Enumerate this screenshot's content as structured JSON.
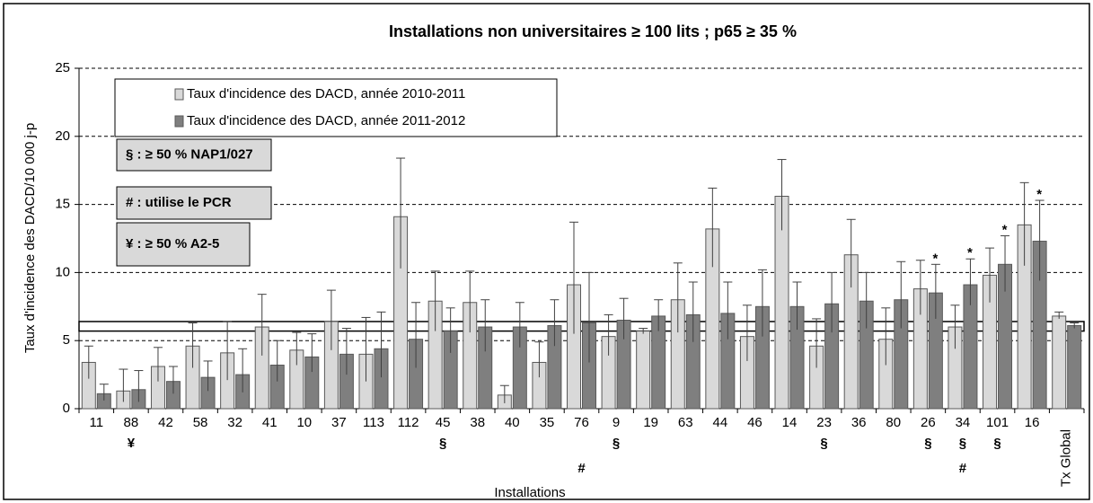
{
  "chart_data": {
    "type": "bar",
    "title": "Installations non universitaires ≥ 100 lits ; p65 ≥ 35 %",
    "y_label": "Taux d'incidence des DACD/10 000 j-p",
    "x_label": "Installations",
    "categories": [
      "11",
      "88",
      "42",
      "58",
      "32",
      "41",
      "10",
      "37",
      "113",
      "112",
      "45",
      "38",
      "40",
      "35",
      "76",
      "9",
      "19",
      "63",
      "44",
      "46",
      "14",
      "23",
      "36",
      "80",
      "26",
      "34",
      "101",
      "16",
      "Tx Global"
    ],
    "series": [
      {
        "name": "Taux d'incidence des DACD, année 2010-2011",
        "color": "#d9d9d9",
        "values": [
          3.4,
          1.3,
          3.1,
          4.6,
          4.1,
          6.0,
          4.3,
          6.4,
          4.0,
          14.1,
          7.9,
          7.8,
          1.0,
          3.4,
          9.1,
          5.3,
          5.7,
          8.0,
          13.2,
          5.3,
          15.6,
          4.6,
          11.3,
          5.1,
          8.8,
          6.0,
          9.8,
          13.5,
          6.8
        ],
        "lower": [
          2.2,
          0.5,
          2.0,
          3.0,
          2.1,
          3.9,
          3.2,
          4.3,
          2.0,
          10.3,
          5.7,
          5.6,
          0.4,
          2.3,
          5.5,
          3.9,
          5.5,
          5.6,
          10.4,
          3.5,
          13.1,
          3.0,
          8.9,
          3.2,
          6.9,
          4.4,
          7.8,
          10.5,
          6.6
        ],
        "upper": [
          4.6,
          2.9,
          4.5,
          6.3,
          6.4,
          8.4,
          5.6,
          8.7,
          6.7,
          18.4,
          10.1,
          10.1,
          1.7,
          4.9,
          13.7,
          6.9,
          5.9,
          10.7,
          16.2,
          7.6,
          18.3,
          6.6,
          13.9,
          7.4,
          10.9,
          7.6,
          11.8,
          16.6,
          7.1
        ]
      },
      {
        "name": "Taux d'incidence des DACD, année 2011-2012",
        "color": "#7f7f7f",
        "values": [
          1.1,
          1.4,
          2.0,
          2.3,
          2.5,
          3.2,
          3.8,
          4.0,
          4.4,
          5.1,
          5.7,
          6.0,
          6.0,
          6.1,
          6.3,
          6.5,
          6.8,
          6.9,
          7.0,
          7.5,
          7.5,
          7.7,
          7.9,
          8.0,
          8.5,
          9.1,
          10.6,
          12.3,
          6.1
        ],
        "lower": [
          0.6,
          0.5,
          1.1,
          1.3,
          1.2,
          2.0,
          2.7,
          2.5,
          2.3,
          3.0,
          4.1,
          4.2,
          4.5,
          4.6,
          3.4,
          5.1,
          5.7,
          4.9,
          5.1,
          5.3,
          5.8,
          5.6,
          5.9,
          5.9,
          6.6,
          7.6,
          8.6,
          9.4,
          5.9
        ],
        "upper": [
          1.8,
          2.8,
          3.1,
          3.5,
          4.4,
          5.0,
          5.5,
          5.9,
          7.1,
          7.8,
          7.4,
          8.0,
          7.8,
          8.0,
          10.0,
          8.1,
          8.0,
          9.3,
          9.3,
          10.2,
          9.3,
          10.0,
          10.0,
          10.8,
          10.6,
          11.0,
          12.7,
          15.3,
          6.3
        ]
      }
    ],
    "stars": [
      null,
      null,
      null,
      null,
      null,
      null,
      null,
      null,
      null,
      null,
      null,
      null,
      null,
      null,
      null,
      null,
      null,
      null,
      null,
      null,
      null,
      null,
      null,
      null,
      "*",
      "*",
      "*",
      "*",
      null
    ],
    "notes_row1": [
      null,
      "¥",
      null,
      null,
      null,
      null,
      null,
      null,
      null,
      null,
      "§",
      null,
      null,
      null,
      null,
      "§",
      null,
      null,
      null,
      null,
      null,
      "§",
      null,
      null,
      "§",
      "§",
      "§",
      null,
      null
    ],
    "notes_row2": [
      null,
      null,
      null,
      null,
      null,
      null,
      null,
      null,
      null,
      null,
      null,
      null,
      null,
      null,
      "#",
      null,
      null,
      null,
      null,
      null,
      null,
      null,
      null,
      null,
      null,
      "#",
      null,
      null,
      null
    ],
    "legend_notes": [
      "§ : ≥ 50 % NAP1/027",
      "# : utilise le PCR",
      "¥ : ≥ 50 % A2-5"
    ],
    "reference_band": [
      5.7,
      6.4
    ],
    "ylim": [
      0,
      25
    ],
    "yticks": [
      0,
      5,
      10,
      15,
      20,
      25
    ],
    "grid": true
  }
}
